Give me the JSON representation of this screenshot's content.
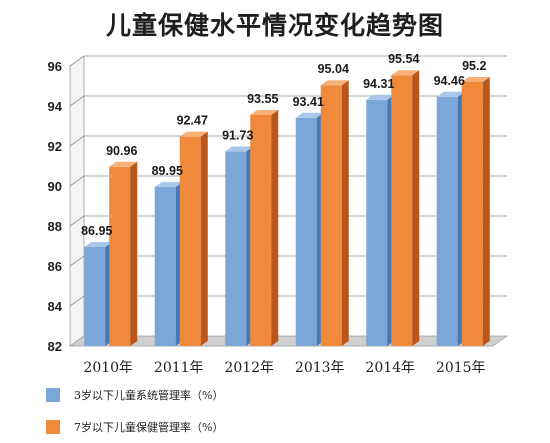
{
  "colors": {
    "series1_front": "#7ba7d8",
    "series1_side": "#4a78b2",
    "series1_top": "#a9c7ea",
    "series2_front": "#f08a3a",
    "series2_side": "#b9561a",
    "series2_top": "#f6b07a",
    "floor": "#cfcfcf",
    "grid": "#8d8d8d"
  },
  "chart_data": {
    "type": "bar",
    "title": "儿童保健水平情况变化趋势图",
    "categories": [
      "2010年",
      "2011年",
      "2012年",
      "2013年",
      "2014年",
      "2015年"
    ],
    "series": [
      {
        "name": "3岁以下儿童系统管理率（%）",
        "values": [
          86.95,
          89.95,
          91.73,
          93.41,
          94.31,
          94.46
        ]
      },
      {
        "name": "7岁以下儿童保健管理率（%）",
        "values": [
          90.96,
          92.47,
          93.55,
          95.04,
          95.54,
          95.2
        ]
      }
    ],
    "ylim": [
      82,
      96
    ],
    "yticks": [
      82,
      84,
      86,
      88,
      90,
      92,
      94,
      96
    ],
    "grid": true,
    "legend_position": "bottom-left"
  }
}
